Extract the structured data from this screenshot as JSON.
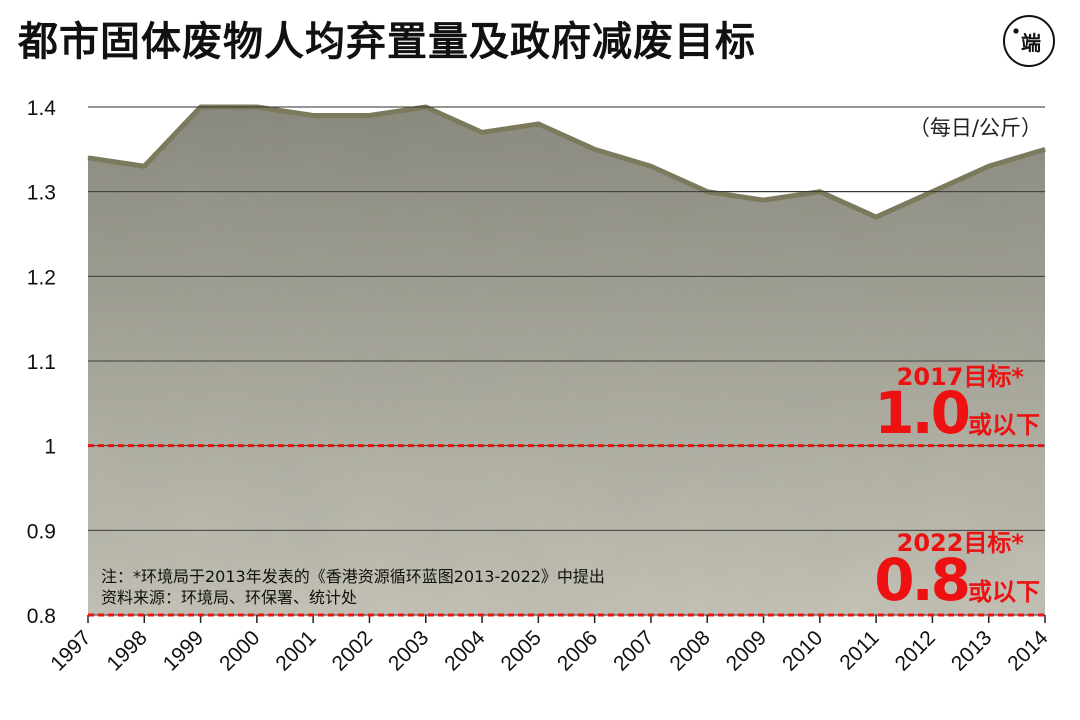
{
  "title": "都市固体废物人均弃置量及政府减废目标",
  "logo_text": "端",
  "unit_label": "（每日/公斤）",
  "notes": {
    "line1": "注：*环境局于2013年发表的《香港资源循环蓝图2013-2022》中提出",
    "line2": "资料来源：环境局、环保署、统计处"
  },
  "targets": [
    {
      "label": "2017目标*",
      "value": 1.0,
      "value_text": "1.0",
      "suffix": "或以下"
    },
    {
      "label": "2022目标*",
      "value": 0.8,
      "value_text": "0.8",
      "suffix": "或以下"
    }
  ],
  "colors": {
    "area_fill": "#9b9a8e",
    "area_line": "#7b7a5c",
    "target": "#ee1111",
    "grid": "#333333"
  },
  "chart_data": {
    "type": "area",
    "x": [
      "1997",
      "1998",
      "1999",
      "2000",
      "2001",
      "2002",
      "2003",
      "2004",
      "2005",
      "2006",
      "2007",
      "2008",
      "2009",
      "2010",
      "2011",
      "2012",
      "2013",
      "2014"
    ],
    "values": [
      1.34,
      1.33,
      1.4,
      1.4,
      1.39,
      1.39,
      1.4,
      1.37,
      1.38,
      1.35,
      1.33,
      1.3,
      1.29,
      1.3,
      1.27,
      1.3,
      1.33,
      1.35
    ],
    "ylim": [
      0.8,
      1.4
    ],
    "yticks": [
      {
        "value": 0.8,
        "label": "0.8"
      },
      {
        "value": 0.9,
        "label": "0.9"
      },
      {
        "value": 1.0,
        "label": "1"
      },
      {
        "value": 1.1,
        "label": "1.1"
      },
      {
        "value": 1.2,
        "label": "1.2"
      },
      {
        "value": 1.3,
        "label": "1.3"
      },
      {
        "value": 1.4,
        "label": "1.4"
      }
    ],
    "grid": true
  }
}
